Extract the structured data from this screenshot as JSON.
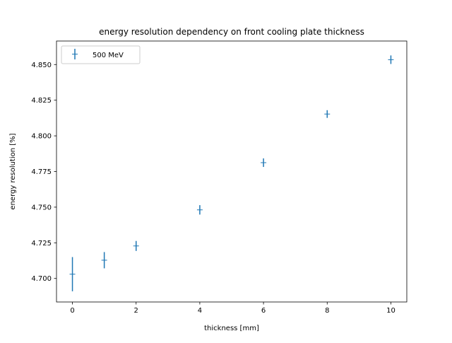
{
  "chart_data": {
    "type": "scatter",
    "title": "energy resolution dependency on front cooling plate thickness",
    "xlabel": "thickness [mm]",
    "ylabel": "energy resolution [%]",
    "xlim": [
      -0.5,
      10.5
    ],
    "ylim": [
      4.6835,
      4.8665
    ],
    "xticks": [
      0,
      2,
      4,
      6,
      8,
      10
    ],
    "xtick_labels": [
      "0",
      "2",
      "4",
      "6",
      "8",
      "10"
    ],
    "yticks": [
      4.7,
      4.725,
      4.75,
      4.775,
      4.8,
      4.825,
      4.85
    ],
    "ytick_labels": [
      "4.700",
      "4.725",
      "4.750",
      "4.775",
      "4.800",
      "4.825",
      "4.850"
    ],
    "grid": false,
    "legend_position": "top-left",
    "series": [
      {
        "name": "500 MeV",
        "color": "#1f77b4",
        "marker": "+",
        "points": [
          {
            "x": 0,
            "y": 4.703,
            "yerr": 0.012
          },
          {
            "x": 1,
            "y": 4.7128,
            "yerr": 0.0057
          },
          {
            "x": 2,
            "y": 4.7228,
            "yerr": 0.0035
          },
          {
            "x": 4,
            "y": 4.7481,
            "yerr": 0.0033
          },
          {
            "x": 6,
            "y": 4.7812,
            "yerr": 0.003
          },
          {
            "x": 8,
            "y": 4.8153,
            "yerr": 0.0027
          },
          {
            "x": 10,
            "y": 4.8534,
            "yerr": 0.003
          }
        ]
      }
    ]
  }
}
